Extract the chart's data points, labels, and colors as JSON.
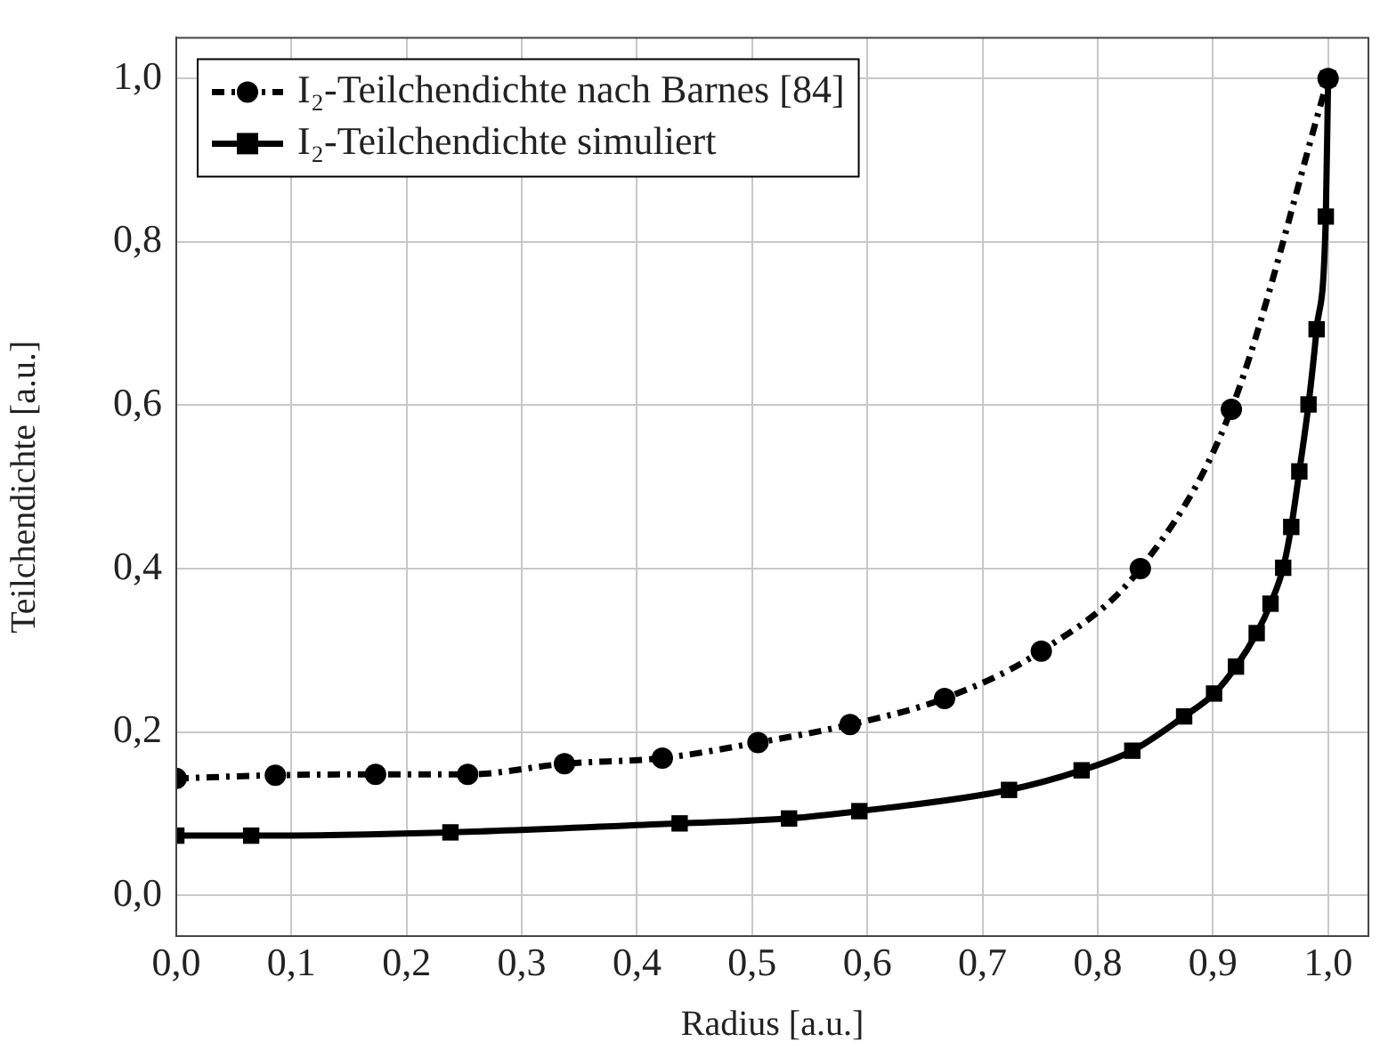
{
  "chart_data": {
    "type": "line",
    "xlabel": "Radius [a.u.]",
    "ylabel": "Teilchendichte [a.u.]",
    "xlim": [
      0,
      1.035
    ],
    "ylim": [
      -0.05,
      1.05
    ],
    "xticks": [
      {
        "value": 0,
        "label": "0,0"
      },
      {
        "value": 0.1,
        "label": "0,1"
      },
      {
        "value": 0.2,
        "label": "0,2"
      },
      {
        "value": 0.3,
        "label": "0,3"
      },
      {
        "value": 0.4,
        "label": "0,4"
      },
      {
        "value": 0.5,
        "label": "0,5"
      },
      {
        "value": 0.6,
        "label": "0,6"
      },
      {
        "value": 0.7,
        "label": "0,7"
      },
      {
        "value": 0.8,
        "label": "0,8"
      },
      {
        "value": 0.9,
        "label": "0,9"
      },
      {
        "value": 1,
        "label": "1,0"
      }
    ],
    "yticks": [
      {
        "value": 0,
        "label": "0,0"
      },
      {
        "value": 0.2,
        "label": "0,2"
      },
      {
        "value": 0.4,
        "label": "0,4"
      },
      {
        "value": 0.6,
        "label": "0,6"
      },
      {
        "value": 0.8,
        "label": "0,8"
      },
      {
        "value": 1,
        "label": "1,0"
      }
    ],
    "grid": true,
    "legend": "top left",
    "series": [
      {
        "name": "I₂-Teilchendichte nach Barnes [84]",
        "color": "#000000",
        "marker": "circle",
        "line_style": "dashed",
        "x": [
          0,
          0.086,
          0.173,
          0.253,
          0.337,
          0.422,
          0.505,
          0.585,
          0.667,
          0.751,
          0.837,
          0.916,
          1.0
        ],
        "values": [
          0.143,
          0.147,
          0.148,
          0.148,
          0.161,
          0.168,
          0.187,
          0.209,
          0.241,
          0.299,
          0.4,
          0.595,
          1.0
        ]
      },
      {
        "name": "I₂-Teilchendichte simuliert",
        "color": "#000000",
        "marker": "square",
        "line_style": "solid",
        "x": [
          0,
          0.065,
          0.238,
          0.437,
          0.532,
          0.593,
          0.723,
          0.786,
          0.83,
          0.875,
          0.901,
          0.92,
          0.938,
          0.95,
          0.961,
          0.968,
          0.975,
          0.983,
          0.99,
          0.998,
          1.0
        ],
        "values": [
          0.073,
          0.073,
          0.077,
          0.088,
          0.094,
          0.103,
          0.129,
          0.153,
          0.177,
          0.219,
          0.247,
          0.28,
          0.321,
          0.357,
          0.401,
          0.451,
          0.519,
          0.601,
          0.693,
          0.831,
          1.0
        ]
      }
    ]
  }
}
